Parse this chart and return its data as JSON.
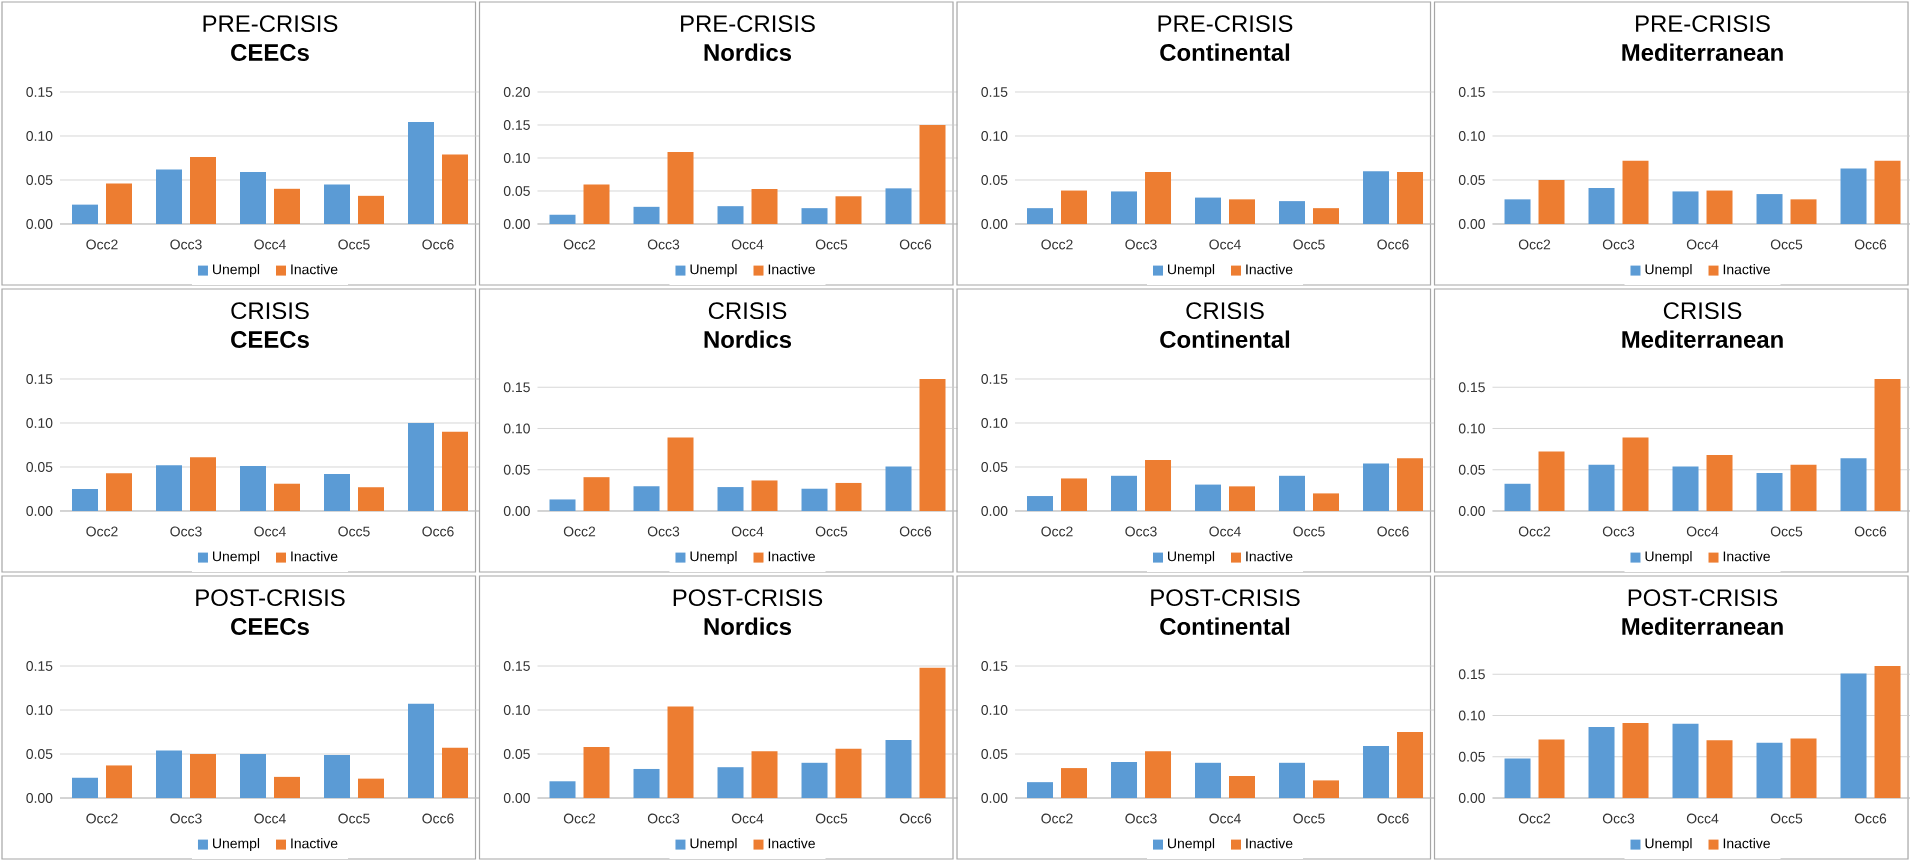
{
  "chart_data": [
    {
      "type": "bar",
      "title": "PRE-CRISIS",
      "subtitle": "CEECs",
      "categories": [
        "Occ2",
        "Occ3",
        "Occ4",
        "Occ5",
        "Occ6"
      ],
      "ylim": [
        0,
        0.15
      ],
      "yticks": [
        {
          "value": 0,
          "label": "0.00"
        },
        {
          "value": 0.05,
          "label": "0.05"
        },
        {
          "value": 0.1,
          "label": "0.10"
        },
        {
          "value": 0.15,
          "label": "0.15"
        }
      ],
      "grid": "y",
      "legend": "bottom",
      "series": [
        {
          "name": "Unempl",
          "color": "#5b9bd5",
          "values": [
            0.022,
            0.062,
            0.059,
            0.045,
            0.116
          ]
        },
        {
          "name": "Inactive",
          "color": "#ed7d31",
          "values": [
            0.046,
            0.076,
            0.04,
            0.032,
            0.079
          ]
        }
      ]
    },
    {
      "type": "bar",
      "title": "PRE-CRISIS",
      "subtitle": "Nordics",
      "categories": [
        "Occ2",
        "Occ3",
        "Occ4",
        "Occ5",
        "Occ6"
      ],
      "ylim": [
        0,
        0.2
      ],
      "yticks": [
        {
          "value": 0,
          "label": "0.00"
        },
        {
          "value": 0.05,
          "label": "0.05"
        },
        {
          "value": 0.1,
          "label": "0.10"
        },
        {
          "value": 0.15,
          "label": "0.15"
        },
        {
          "value": 0.2,
          "label": "0.20"
        }
      ],
      "grid": "y",
      "legend": "bottom",
      "series": [
        {
          "name": "Unempl",
          "color": "#5b9bd5",
          "values": [
            0.014,
            0.026,
            0.027,
            0.024,
            0.054
          ]
        },
        {
          "name": "Inactive",
          "color": "#ed7d31",
          "values": [
            0.06,
            0.109,
            0.053,
            0.042,
            0.15
          ]
        }
      ]
    },
    {
      "type": "bar",
      "title": "PRE-CRISIS",
      "subtitle": "Continental",
      "categories": [
        "Occ2",
        "Occ3",
        "Occ4",
        "Occ5",
        "Occ6"
      ],
      "ylim": [
        0,
        0.15
      ],
      "yticks": [
        {
          "value": 0,
          "label": "0.00"
        },
        {
          "value": 0.05,
          "label": "0.05"
        },
        {
          "value": 0.1,
          "label": "0.10"
        },
        {
          "value": 0.15,
          "label": "0.15"
        }
      ],
      "grid": "y",
      "legend": "bottom",
      "series": [
        {
          "name": "Unempl",
          "color": "#5b9bd5",
          "values": [
            0.018,
            0.037,
            0.03,
            0.026,
            0.06
          ]
        },
        {
          "name": "Inactive",
          "color": "#ed7d31",
          "values": [
            0.038,
            0.059,
            0.028,
            0.018,
            0.059
          ]
        }
      ]
    },
    {
      "type": "bar",
      "title": "PRE-CRISIS",
      "subtitle": "Mediterranean",
      "categories": [
        "Occ2",
        "Occ3",
        "Occ4",
        "Occ5",
        "Occ6"
      ],
      "ylim": [
        0,
        0.15
      ],
      "yticks": [
        {
          "value": 0,
          "label": "0.00"
        },
        {
          "value": 0.05,
          "label": "0.05"
        },
        {
          "value": 0.1,
          "label": "0.10"
        },
        {
          "value": 0.15,
          "label": "0.15"
        }
      ],
      "grid": "y",
      "legend": "bottom",
      "series": [
        {
          "name": "Unempl",
          "color": "#5b9bd5",
          "values": [
            0.028,
            0.041,
            0.037,
            0.034,
            0.063
          ]
        },
        {
          "name": "Inactive",
          "color": "#ed7d31",
          "values": [
            0.05,
            0.072,
            0.038,
            0.028,
            0.072
          ]
        }
      ]
    },
    {
      "type": "bar",
      "title": "CRISIS",
      "subtitle": "CEECs",
      "categories": [
        "Occ2",
        "Occ3",
        "Occ4",
        "Occ5",
        "Occ6"
      ],
      "ylim": [
        0,
        0.15
      ],
      "yticks": [
        {
          "value": 0,
          "label": "0.00"
        },
        {
          "value": 0.05,
          "label": "0.05"
        },
        {
          "value": 0.1,
          "label": "0.10"
        },
        {
          "value": 0.15,
          "label": "0.15"
        }
      ],
      "grid": "y",
      "legend": "bottom",
      "series": [
        {
          "name": "Unempl",
          "color": "#5b9bd5",
          "values": [
            0.025,
            0.052,
            0.051,
            0.042,
            0.1
          ]
        },
        {
          "name": "Inactive",
          "color": "#ed7d31",
          "values": [
            0.043,
            0.061,
            0.031,
            0.027,
            0.09
          ]
        }
      ]
    },
    {
      "type": "bar",
      "title": "CRISIS",
      "subtitle": "Nordics",
      "categories": [
        "Occ2",
        "Occ3",
        "Occ4",
        "Occ5",
        "Occ6"
      ],
      "ylim": [
        0,
        0.16
      ],
      "yticks": [
        {
          "value": 0,
          "label": "0.00"
        },
        {
          "value": 0.05,
          "label": "0.05"
        },
        {
          "value": 0.1,
          "label": "0.10"
        },
        {
          "value": 0.15,
          "label": "0.15"
        }
      ],
      "grid": "y",
      "legend": "bottom",
      "series": [
        {
          "name": "Unempl",
          "color": "#5b9bd5",
          "values": [
            0.014,
            0.03,
            0.029,
            0.027,
            0.054
          ]
        },
        {
          "name": "Inactive",
          "color": "#ed7d31",
          "values": [
            0.041,
            0.089,
            0.037,
            0.034,
            0.16
          ]
        }
      ]
    },
    {
      "type": "bar",
      "title": "CRISIS",
      "subtitle": "Continental",
      "categories": [
        "Occ2",
        "Occ3",
        "Occ4",
        "Occ5",
        "Occ6"
      ],
      "ylim": [
        0,
        0.15
      ],
      "yticks": [
        {
          "value": 0,
          "label": "0.00"
        },
        {
          "value": 0.05,
          "label": "0.05"
        },
        {
          "value": 0.1,
          "label": "0.10"
        },
        {
          "value": 0.15,
          "label": "0.15"
        }
      ],
      "grid": "y",
      "legend": "bottom",
      "series": [
        {
          "name": "Unempl",
          "color": "#5b9bd5",
          "values": [
            0.017,
            0.04,
            0.03,
            0.04,
            0.054
          ]
        },
        {
          "name": "Inactive",
          "color": "#ed7d31",
          "values": [
            0.037,
            0.058,
            0.028,
            0.02,
            0.06
          ]
        }
      ]
    },
    {
      "type": "bar",
      "title": "CRISIS",
      "subtitle": "Mediterranean",
      "categories": [
        "Occ2",
        "Occ3",
        "Occ4",
        "Occ5",
        "Occ6"
      ],
      "ylim": [
        0,
        0.16
      ],
      "yticks": [
        {
          "value": 0,
          "label": "0.00"
        },
        {
          "value": 0.05,
          "label": "0.05"
        },
        {
          "value": 0.1,
          "label": "0.10"
        },
        {
          "value": 0.15,
          "label": "0.15"
        }
      ],
      "grid": "y",
      "legend": "bottom",
      "series": [
        {
          "name": "Unempl",
          "color": "#5b9bd5",
          "values": [
            0.033,
            0.056,
            0.054,
            0.046,
            0.064
          ]
        },
        {
          "name": "Inactive",
          "color": "#ed7d31",
          "values": [
            0.072,
            0.089,
            0.068,
            0.056,
            0.16
          ]
        }
      ]
    },
    {
      "type": "bar",
      "title": "POST-CRISIS",
      "subtitle": "CEECs",
      "categories": [
        "Occ2",
        "Occ3",
        "Occ4",
        "Occ5",
        "Occ6"
      ],
      "ylim": [
        0,
        0.15
      ],
      "yticks": [
        {
          "value": 0,
          "label": "0.00"
        },
        {
          "value": 0.05,
          "label": "0.05"
        },
        {
          "value": 0.1,
          "label": "0.10"
        },
        {
          "value": 0.15,
          "label": "0.15"
        }
      ],
      "grid": "y",
      "legend": "bottom",
      "series": [
        {
          "name": "Unempl",
          "color": "#5b9bd5",
          "values": [
            0.023,
            0.054,
            0.05,
            0.049,
            0.107
          ]
        },
        {
          "name": "Inactive",
          "color": "#ed7d31",
          "values": [
            0.037,
            0.05,
            0.024,
            0.022,
            0.057
          ]
        }
      ]
    },
    {
      "type": "bar",
      "title": "POST-CRISIS",
      "subtitle": "Nordics",
      "categories": [
        "Occ2",
        "Occ3",
        "Occ4",
        "Occ5",
        "Occ6"
      ],
      "ylim": [
        0,
        0.15
      ],
      "yticks": [
        {
          "value": 0,
          "label": "0.00"
        },
        {
          "value": 0.05,
          "label": "0.05"
        },
        {
          "value": 0.1,
          "label": "0.10"
        },
        {
          "value": 0.15,
          "label": "0.15"
        }
      ],
      "grid": "y",
      "legend": "bottom",
      "series": [
        {
          "name": "Unempl",
          "color": "#5b9bd5",
          "values": [
            0.019,
            0.033,
            0.035,
            0.04,
            0.066
          ]
        },
        {
          "name": "Inactive",
          "color": "#ed7d31",
          "values": [
            0.058,
            0.104,
            0.053,
            0.056,
            0.148
          ]
        }
      ]
    },
    {
      "type": "bar",
      "title": "POST-CRISIS",
      "subtitle": "Continental",
      "categories": [
        "Occ2",
        "Occ3",
        "Occ4",
        "Occ5",
        "Occ6"
      ],
      "ylim": [
        0,
        0.15
      ],
      "yticks": [
        {
          "value": 0,
          "label": "0.00"
        },
        {
          "value": 0.05,
          "label": "0.05"
        },
        {
          "value": 0.1,
          "label": "0.10"
        },
        {
          "value": 0.15,
          "label": "0.15"
        }
      ],
      "grid": "y",
      "legend": "bottom",
      "series": [
        {
          "name": "Unempl",
          "color": "#5b9bd5",
          "values": [
            0.018,
            0.041,
            0.04,
            0.04,
            0.059
          ]
        },
        {
          "name": "Inactive",
          "color": "#ed7d31",
          "values": [
            0.034,
            0.053,
            0.025,
            0.02,
            0.075
          ]
        }
      ]
    },
    {
      "type": "bar",
      "title": "POST-CRISIS",
      "subtitle": "Mediterranean",
      "categories": [
        "Occ2",
        "Occ3",
        "Occ4",
        "Occ5",
        "Occ6"
      ],
      "ylim": [
        0,
        0.16
      ],
      "yticks": [
        {
          "value": 0,
          "label": "0.00"
        },
        {
          "value": 0.05,
          "label": "0.05"
        },
        {
          "value": 0.1,
          "label": "0.10"
        },
        {
          "value": 0.15,
          "label": "0.15"
        }
      ],
      "grid": "y",
      "legend": "bottom",
      "series": [
        {
          "name": "Unempl",
          "color": "#5b9bd5",
          "values": [
            0.048,
            0.086,
            0.09,
            0.067,
            0.151
          ]
        },
        {
          "name": "Inactive",
          "color": "#ed7d31",
          "values": [
            0.071,
            0.091,
            0.07,
            0.072,
            0.16
          ]
        }
      ]
    }
  ]
}
